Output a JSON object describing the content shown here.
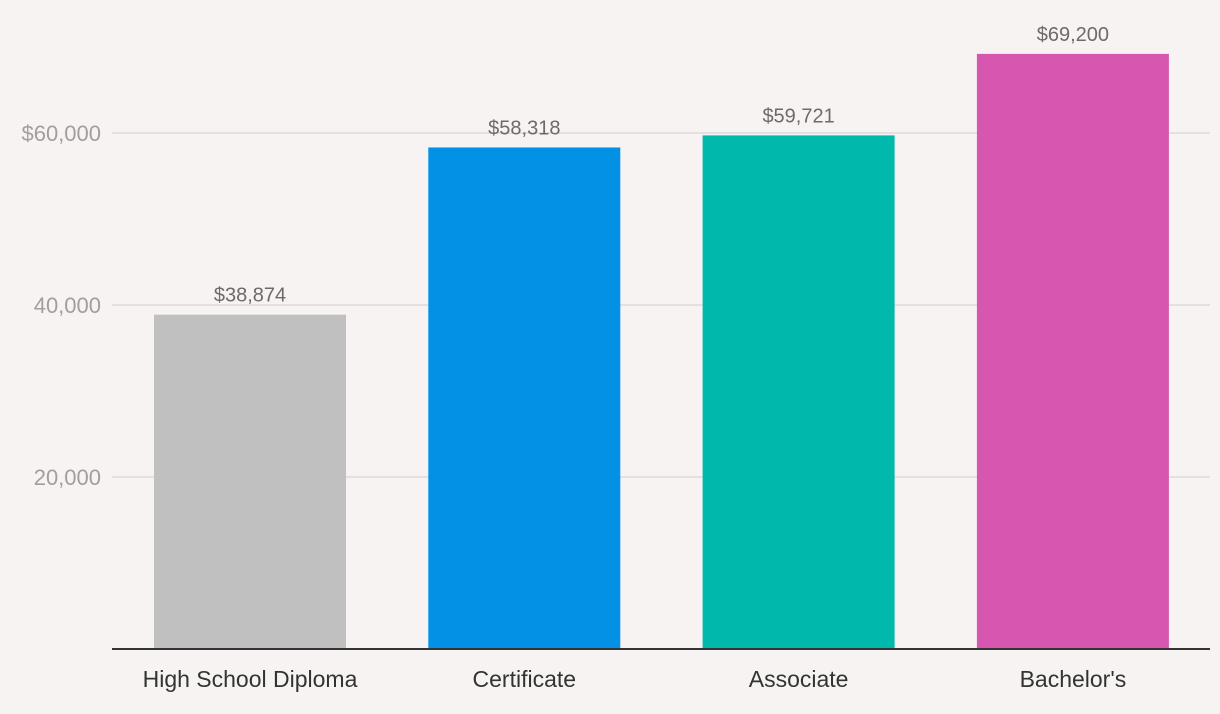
{
  "chart_data": {
    "type": "bar",
    "categories": [
      "High School Diploma",
      "Certificate",
      "Associate",
      "Bachelor's"
    ],
    "values": [
      38874,
      58318,
      59721,
      69200
    ],
    "value_labels": [
      "$38,874",
      "$58,318",
      "$59,721",
      "$69,200"
    ],
    "colors": [
      "#c0c0c0",
      "#0391e6",
      "#00b8ac",
      "#d757b0"
    ],
    "title": "",
    "xlabel": "",
    "ylabel": "",
    "ylim": [
      0,
      70000
    ],
    "yticks": [
      {
        "value": 20000,
        "label": "20,000"
      },
      {
        "value": 40000,
        "label": "40,000"
      },
      {
        "value": 60000,
        "label": "$60,000"
      }
    ],
    "grid": true
  }
}
